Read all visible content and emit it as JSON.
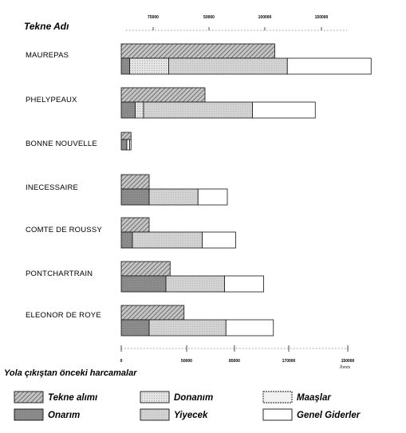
{
  "chart_data": {
    "type": "bar",
    "title": "Tekne Adı",
    "xlim": [
      0,
      150000
    ],
    "x_unit": "livres",
    "top_ticks": [
      "75000",
      "50000",
      "100000",
      "150000"
    ],
    "bottom_ticks": [
      "0",
      "50000",
      "85000",
      "170000",
      "150000"
    ],
    "categories": [
      "MAUREPAS",
      "PHELYPEAUX",
      "BONNE NOUVELLE",
      "INECESSAIRE",
      "COMTE DE ROUSSY",
      "PONTCHARTRAIN",
      "ELEONOR DE ROYE"
    ],
    "groups": [
      {
        "name": "Tekne alımı",
        "values": [
          110000,
          60000,
          7000,
          20000,
          20000,
          35000,
          45000
        ]
      },
      {
        "name": "Yola çıkıştan önceki harcamalar",
        "series": [
          {
            "name": "Onarım",
            "values": [
              6000,
              10000,
              4000,
              20000,
              8000,
              32000,
              20000
            ]
          },
          {
            "name": "Donanım",
            "values": [
              28000,
              6000,
              0,
              0,
              0,
              0,
              0
            ]
          },
          {
            "name": "Yiyecek",
            "values": [
              85000,
              78000,
              0,
              35000,
              50000,
              42000,
              55000
            ]
          },
          {
            "name": "Maaşlar",
            "values": [
              0,
              0,
              2000,
              0,
              0,
              0,
              0
            ]
          },
          {
            "name": "Genel Giderler",
            "values": [
              60000,
              45000,
              1000,
              21000,
              24000,
              28000,
              34000
            ]
          }
        ]
      }
    ],
    "legend": {
      "title": "Yola çıkıştan önceki harcamalar",
      "items": [
        {
          "name": "Tekne alımı",
          "pattern": "hatch"
        },
        {
          "name": "Donanım",
          "pattern": "light-dots"
        },
        {
          "name": "Maaşlar",
          "pattern": "dotted-border"
        },
        {
          "name": "Onarım",
          "pattern": "dark-gray"
        },
        {
          "name": "Yiyecek",
          "pattern": "light-gray"
        },
        {
          "name": "Genel Giderler",
          "pattern": "white"
        }
      ]
    },
    "colors": {
      "dark": "#8c8c8c",
      "light": "#d6d6d6",
      "dots": "#e6e6e6",
      "white": "#ffffff",
      "ink": "#111111"
    }
  }
}
